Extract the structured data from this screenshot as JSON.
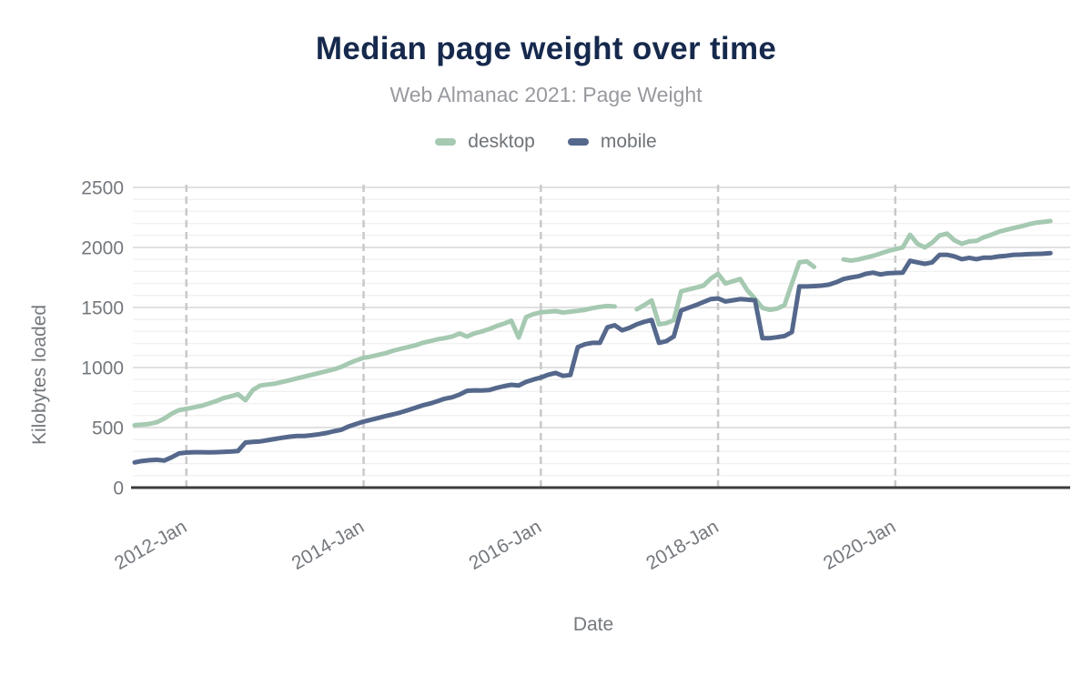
{
  "chart_data": {
    "type": "line",
    "title": "Median page weight over time",
    "subtitle": "Web Almanac 2021: Page Weight",
    "xlabel": "Date",
    "ylabel": "Kilobytes loaded",
    "ylim": [
      0,
      2500
    ],
    "grid": "on",
    "legend_position": "top-center",
    "x_range": {
      "start": "2011-06",
      "end": "2021-10",
      "step": "month"
    },
    "ytick_labels": [
      "0",
      "500",
      "1000",
      "1500",
      "2000",
      "2500"
    ],
    "yticks": [
      0,
      500,
      1000,
      1500,
      2000,
      2500
    ],
    "y_minor_step": 100,
    "xtick_labels": [
      "2012-Jan",
      "2014-Jan",
      "2016-Jan",
      "2018-Jan",
      "2020-Jan"
    ],
    "xtick_month_indices": [
      7,
      31,
      55,
      79,
      103
    ],
    "series": [
      {
        "name": "desktop",
        "color": "#a5c9b1",
        "values": [
          520,
          525,
          530,
          545,
          575,
          615,
          645,
          655,
          668,
          680,
          700,
          720,
          745,
          760,
          778,
          727,
          812,
          850,
          858,
          866,
          880,
          895,
          910,
          925,
          940,
          955,
          970,
          985,
          1005,
          1035,
          1060,
          1080,
          1092,
          1105,
          1120,
          1140,
          1155,
          1170,
          1185,
          1205,
          1220,
          1235,
          1245,
          1258,
          1283,
          1258,
          1285,
          1300,
          1320,
          1345,
          1365,
          1390,
          1250,
          1420,
          1445,
          1460,
          1465,
          1470,
          1458,
          1465,
          1472,
          1480,
          1495,
          1505,
          1512,
          1508,
          null,
          null,
          1485,
          1520,
          1558,
          1360,
          1370,
          1395,
          1635,
          1650,
          1665,
          1680,
          1740,
          1780,
          1700,
          1718,
          1737,
          1640,
          1573,
          1497,
          1480,
          1490,
          1520,
          1700,
          1876,
          1884,
          1838,
          null,
          null,
          null,
          1900,
          1890,
          1900,
          1915,
          1930,
          1950,
          1970,
          1985,
          2000,
          2105,
          2030,
          2000,
          2040,
          2100,
          2115,
          2060,
          2030,
          2050,
          2055,
          2085,
          2105,
          2130,
          2146,
          2161,
          2175,
          2192,
          2205,
          2212,
          2220
        ]
      },
      {
        "name": "mobile",
        "color": "#55688c",
        "values": [
          210,
          222,
          228,
          232,
          225,
          252,
          285,
          292,
          295,
          295,
          293,
          295,
          297,
          300,
          305,
          375,
          380,
          385,
          395,
          405,
          415,
          424,
          430,
          430,
          436,
          445,
          455,
          470,
          482,
          510,
          530,
          550,
          565,
          580,
          596,
          610,
          626,
          645,
          665,
          685,
          700,
          720,
          740,
          752,
          775,
          806,
          810,
          808,
          812,
          830,
          845,
          856,
          850,
          880,
          900,
          917,
          940,
          955,
          930,
          938,
          1170,
          1195,
          1205,
          1205,
          1335,
          1352,
          1310,
          1330,
          1360,
          1380,
          1396,
          1205,
          1220,
          1258,
          1475,
          1498,
          1520,
          1545,
          1570,
          1575,
          1550,
          1560,
          1570,
          1565,
          1560,
          1245,
          1245,
          1252,
          1262,
          1295,
          1675,
          1675,
          1678,
          1682,
          1690,
          1710,
          1737,
          1750,
          1760,
          1780,
          1790,
          1775,
          1785,
          1788,
          1790,
          1889,
          1876,
          1864,
          1876,
          1939,
          1939,
          1926,
          1902,
          1914,
          1902,
          1915,
          1915,
          1925,
          1930,
          1939,
          1940,
          1944,
          1946,
          1948,
          1952
        ]
      }
    ]
  }
}
